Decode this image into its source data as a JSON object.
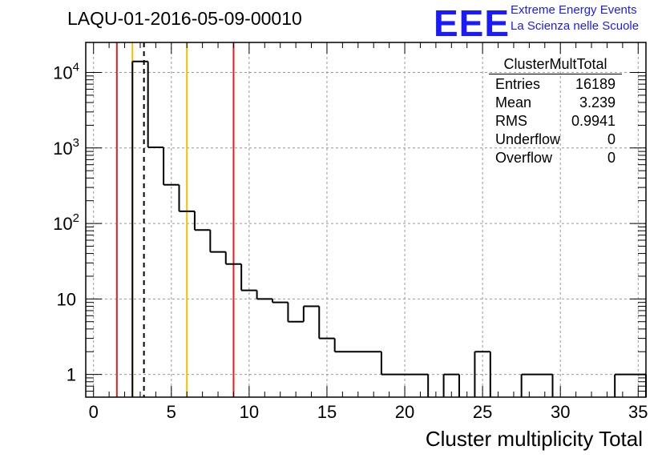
{
  "header": {
    "title": "LAQU-01-2016-05-09-00010",
    "logo": "EEE",
    "logo_line1": "Extreme Energy Events",
    "logo_line2": "La Scienza nelle Scuole"
  },
  "stats": {
    "title": "ClusterMultTotal",
    "rows": [
      {
        "label": "Entries",
        "value": "16189"
      },
      {
        "label": "Mean",
        "value": "3.239"
      },
      {
        "label": "RMS",
        "value": "0.9941"
      },
      {
        "label": "Underflow",
        "value": "0"
      },
      {
        "label": "Overflow",
        "value": "0"
      }
    ]
  },
  "chart_data": {
    "type": "histogram",
    "title": "LAQU-01-2016-05-09-00010",
    "xlabel": "Cluster multiplicity Total",
    "ylabel": "",
    "xlim": [
      -0.5,
      35.5
    ],
    "ylim": [
      0.5,
      25000
    ],
    "yscale": "log",
    "grid": true,
    "bins": [
      {
        "x0": 2.5,
        "x1": 3.5,
        "y": 14000
      },
      {
        "x0": 3.5,
        "x1": 4.5,
        "y": 1020
      },
      {
        "x0": 4.5,
        "x1": 5.5,
        "y": 325
      },
      {
        "x0": 5.5,
        "x1": 6.5,
        "y": 145
      },
      {
        "x0": 6.5,
        "x1": 7.5,
        "y": 82
      },
      {
        "x0": 7.5,
        "x1": 8.5,
        "y": 42
      },
      {
        "x0": 8.5,
        "x1": 9.5,
        "y": 29
      },
      {
        "x0": 9.5,
        "x1": 10.5,
        "y": 13
      },
      {
        "x0": 10.5,
        "x1": 11.5,
        "y": 10
      },
      {
        "x0": 11.5,
        "x1": 12.5,
        "y": 9
      },
      {
        "x0": 12.5,
        "x1": 13.5,
        "y": 5
      },
      {
        "x0": 13.5,
        "x1": 14.5,
        "y": 8
      },
      {
        "x0": 14.5,
        "x1": 15.5,
        "y": 3
      },
      {
        "x0": 15.5,
        "x1": 18.5,
        "y": 2
      },
      {
        "x0": 18.5,
        "x1": 21.5,
        "y": 1
      },
      {
        "x0": 22.5,
        "x1": 23.5,
        "y": 1
      },
      {
        "x0": 24.5,
        "x1": 25.5,
        "y": 2
      },
      {
        "x0": 27.5,
        "x1": 29.5,
        "y": 1
      },
      {
        "x0": 33.5,
        "x1": 35.5,
        "y": 1
      }
    ],
    "vlines": [
      {
        "x": 1.5,
        "color": "#e02020",
        "style": "solid"
      },
      {
        "x": 2.5,
        "color": "#f0c000",
        "style": "solid"
      },
      {
        "x": 3.24,
        "color": "#000000",
        "style": "dashed"
      },
      {
        "x": 6.0,
        "color": "#f0c000",
        "style": "solid"
      },
      {
        "x": 9.0,
        "color": "#e02020",
        "style": "solid"
      }
    ],
    "xticks": [
      "0",
      "5",
      "10",
      "15",
      "20",
      "25",
      "30",
      "35"
    ],
    "yticks": [
      {
        "value": 1,
        "base": "1",
        "exp": ""
      },
      {
        "value": 10,
        "base": "10",
        "exp": ""
      },
      {
        "value": 100,
        "base": "10",
        "exp": "2"
      },
      {
        "value": 1000,
        "base": "10",
        "exp": "3"
      },
      {
        "value": 10000,
        "base": "10",
        "exp": "4"
      }
    ]
  }
}
